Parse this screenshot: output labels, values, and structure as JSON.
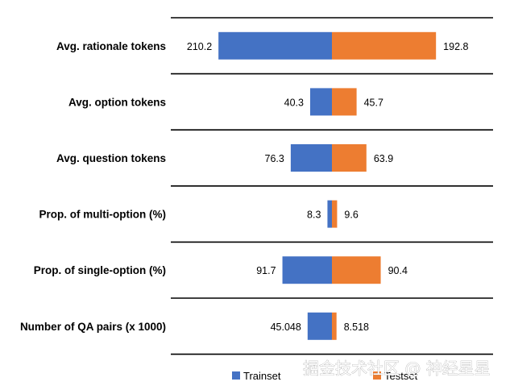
{
  "chart_data": {
    "type": "bar",
    "orientation": "horizontal-back-to-back",
    "categories": [
      "Avg. rationale tokens",
      "Avg. option tokens",
      "Avg. question tokens",
      "Prop. of multi-option (%)",
      "Prop. of single-option (%)",
      "Number of QA pairs (x 1000)"
    ],
    "series": [
      {
        "name": "Trainset",
        "color": "#4472C4",
        "values": [
          210.2,
          40.3,
          76.3,
          8.3,
          91.7,
          45.048
        ],
        "labels": [
          "210.2",
          "40.3",
          "76.3",
          "8.3",
          "91.7",
          "45.048"
        ]
      },
      {
        "name": "Testset",
        "color": "#ED7D31",
        "values": [
          192.8,
          45.7,
          63.9,
          9.6,
          90.4,
          8.518
        ],
        "labels": [
          "192.8",
          "45.7",
          "63.9",
          "9.6",
          "90.4",
          "8.518"
        ]
      }
    ],
    "legend": "bottom",
    "grid": "horizontal separators"
  },
  "watermark": "掘金技术社区 @ 神经星星"
}
